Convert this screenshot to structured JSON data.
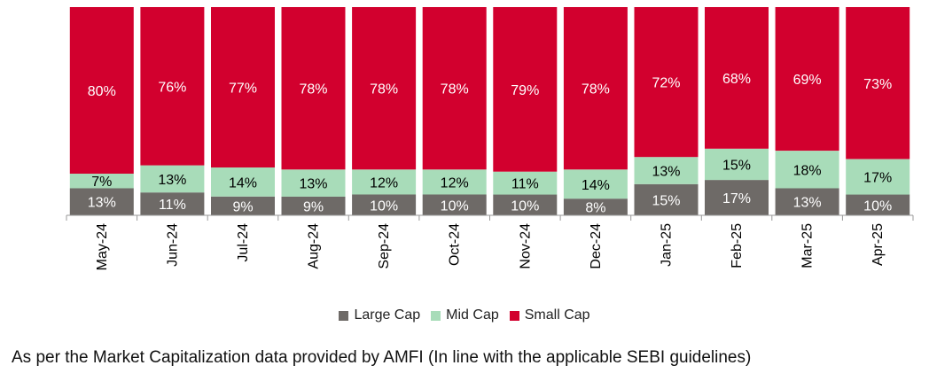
{
  "colors": {
    "large": "#6e6a67",
    "mid": "#a8dcb9",
    "small": "#d2002e"
  },
  "chart_data": {
    "type": "bar",
    "stacked": true,
    "percent_stacked": true,
    "categories": [
      "May-24",
      "Jun-24",
      "Jul-24",
      "Aug-24",
      "Sep-24",
      "Oct-24",
      "Nov-24",
      "Dec-24",
      "Jan-25",
      "Feb-25",
      "Mar-25",
      "Apr-25"
    ],
    "series": [
      {
        "name": "Large Cap",
        "values": [
          13,
          11,
          9,
          9,
          10,
          10,
          10,
          8,
          15,
          17,
          13,
          10
        ]
      },
      {
        "name": "Mid Cap",
        "values": [
          7,
          13,
          14,
          13,
          12,
          12,
          11,
          14,
          13,
          15,
          18,
          17
        ]
      },
      {
        "name": "Small Cap",
        "values": [
          80,
          76,
          77,
          78,
          78,
          78,
          79,
          78,
          72,
          68,
          69,
          73
        ]
      }
    ],
    "value_suffix": "%",
    "ylim": [
      0,
      100
    ],
    "grid": false,
    "legend_position": "bottom",
    "title": "",
    "xlabel": "",
    "ylabel": ""
  },
  "footnote": "As per the Market Capitalization data provided by AMFI (In line with the applicable SEBI guidelines)"
}
